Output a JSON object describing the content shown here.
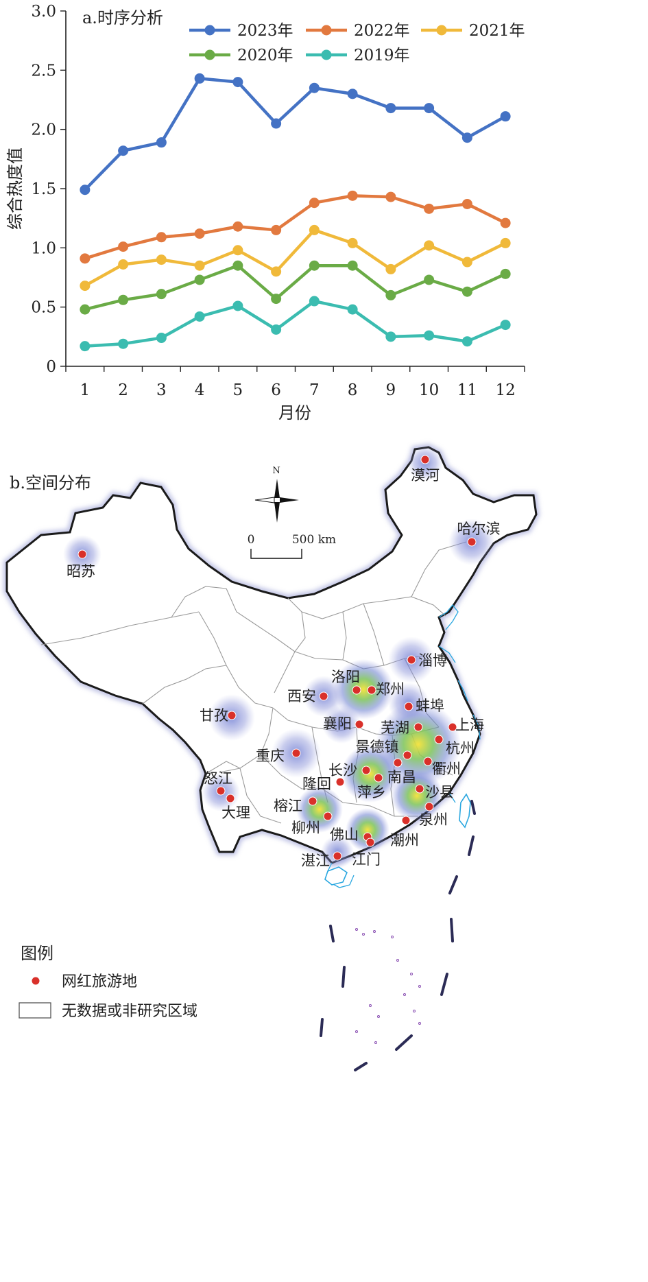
{
  "chart_data": {
    "type": "line",
    "title": "a.时序分析",
    "xlabel": "月份",
    "ylabel": "综合热度值",
    "ylim": [
      0,
      3.0
    ],
    "yticks": [
      "0",
      "0.5",
      "1.0",
      "1.5",
      "2.0",
      "2.5",
      "3.0"
    ],
    "categories": [
      "1",
      "2",
      "3",
      "4",
      "5",
      "6",
      "7",
      "8",
      "9",
      "10",
      "11",
      "12"
    ],
    "legend_position": "top-right",
    "grid": false,
    "series": [
      {
        "name": "2023年",
        "color": "#4472c4",
        "values": [
          1.49,
          1.82,
          1.89,
          2.43,
          2.4,
          2.05,
          2.35,
          2.3,
          2.18,
          2.18,
          1.93,
          2.11
        ]
      },
      {
        "name": "2022年",
        "color": "#e2793f",
        "values": [
          0.91,
          1.01,
          1.09,
          1.12,
          1.18,
          1.15,
          1.38,
          1.44,
          1.43,
          1.33,
          1.37,
          1.21
        ]
      },
      {
        "name": "2021年",
        "color": "#f0b93a",
        "values": [
          0.68,
          0.86,
          0.9,
          0.85,
          0.98,
          0.8,
          1.15,
          1.04,
          0.82,
          1.02,
          0.88,
          1.04
        ]
      },
      {
        "name": "2020年",
        "color": "#6aab46",
        "values": [
          0.48,
          0.56,
          0.61,
          0.73,
          0.85,
          0.57,
          0.85,
          0.85,
          0.6,
          0.73,
          0.63,
          0.78
        ]
      },
      {
        "name": "2019年",
        "color": "#3bbcb0",
        "values": [
          0.17,
          0.19,
          0.24,
          0.42,
          0.51,
          0.31,
          0.55,
          0.48,
          0.25,
          0.26,
          0.21,
          0.35
        ]
      }
    ]
  },
  "map": {
    "title": "b.空间分布",
    "north_label": "N",
    "scale_start": "0",
    "scale_end": "500 km",
    "legend_title": "图例",
    "legend_point": "网红旅游地",
    "legend_nodata": "无数据或非研究区域",
    "cities": [
      {
        "name": "漠河"
      },
      {
        "name": "哈尔滨"
      },
      {
        "name": "昭苏"
      },
      {
        "name": "淄博"
      },
      {
        "name": "洛阳"
      },
      {
        "name": "郑州"
      },
      {
        "name": "西安"
      },
      {
        "name": "蚌埠"
      },
      {
        "name": "甘孜"
      },
      {
        "name": "襄阳"
      },
      {
        "name": "芜湖"
      },
      {
        "name": "上海"
      },
      {
        "name": "景德镇"
      },
      {
        "name": "杭州"
      },
      {
        "name": "重庆"
      },
      {
        "name": "长沙"
      },
      {
        "name": "南昌"
      },
      {
        "name": "衢州"
      },
      {
        "name": "怒江"
      },
      {
        "name": "隆回"
      },
      {
        "name": "萍乡"
      },
      {
        "name": "沙县"
      },
      {
        "name": "大理"
      },
      {
        "name": "榕江"
      },
      {
        "name": "泉州"
      },
      {
        "name": "柳州"
      },
      {
        "name": "佛山"
      },
      {
        "name": "潮州"
      },
      {
        "name": "湛江"
      },
      {
        "name": "江门"
      }
    ]
  }
}
